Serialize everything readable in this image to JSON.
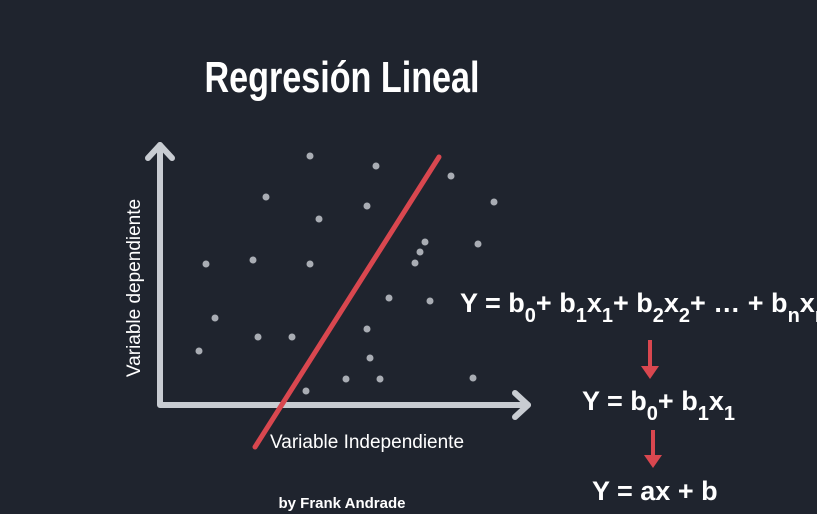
{
  "title": "Regresión Lineal",
  "y_axis_label": "Variable dependiente",
  "x_axis_label": "Variable Independiente",
  "equations": [
    [
      {
        "text": "Y = b",
        "sub": "0"
      },
      {
        "text": "+ b",
        "sub": "1"
      },
      {
        "text": "x",
        "sub": "1"
      },
      {
        "text": "+ b",
        "sub": "2"
      },
      {
        "text": "x",
        "sub": "2"
      },
      {
        "text": "+ … + b",
        "sub": "n"
      },
      {
        "text": "x",
        "sub": "n"
      }
    ],
    [
      {
        "text": "Y = b",
        "sub": "0"
      },
      {
        "text": "+ b",
        "sub": "1"
      },
      {
        "text": "x",
        "sub": "1"
      }
    ],
    [
      {
        "text": "Y = ax + b"
      }
    ]
  ],
  "author": "by Frank Andrade"
}
